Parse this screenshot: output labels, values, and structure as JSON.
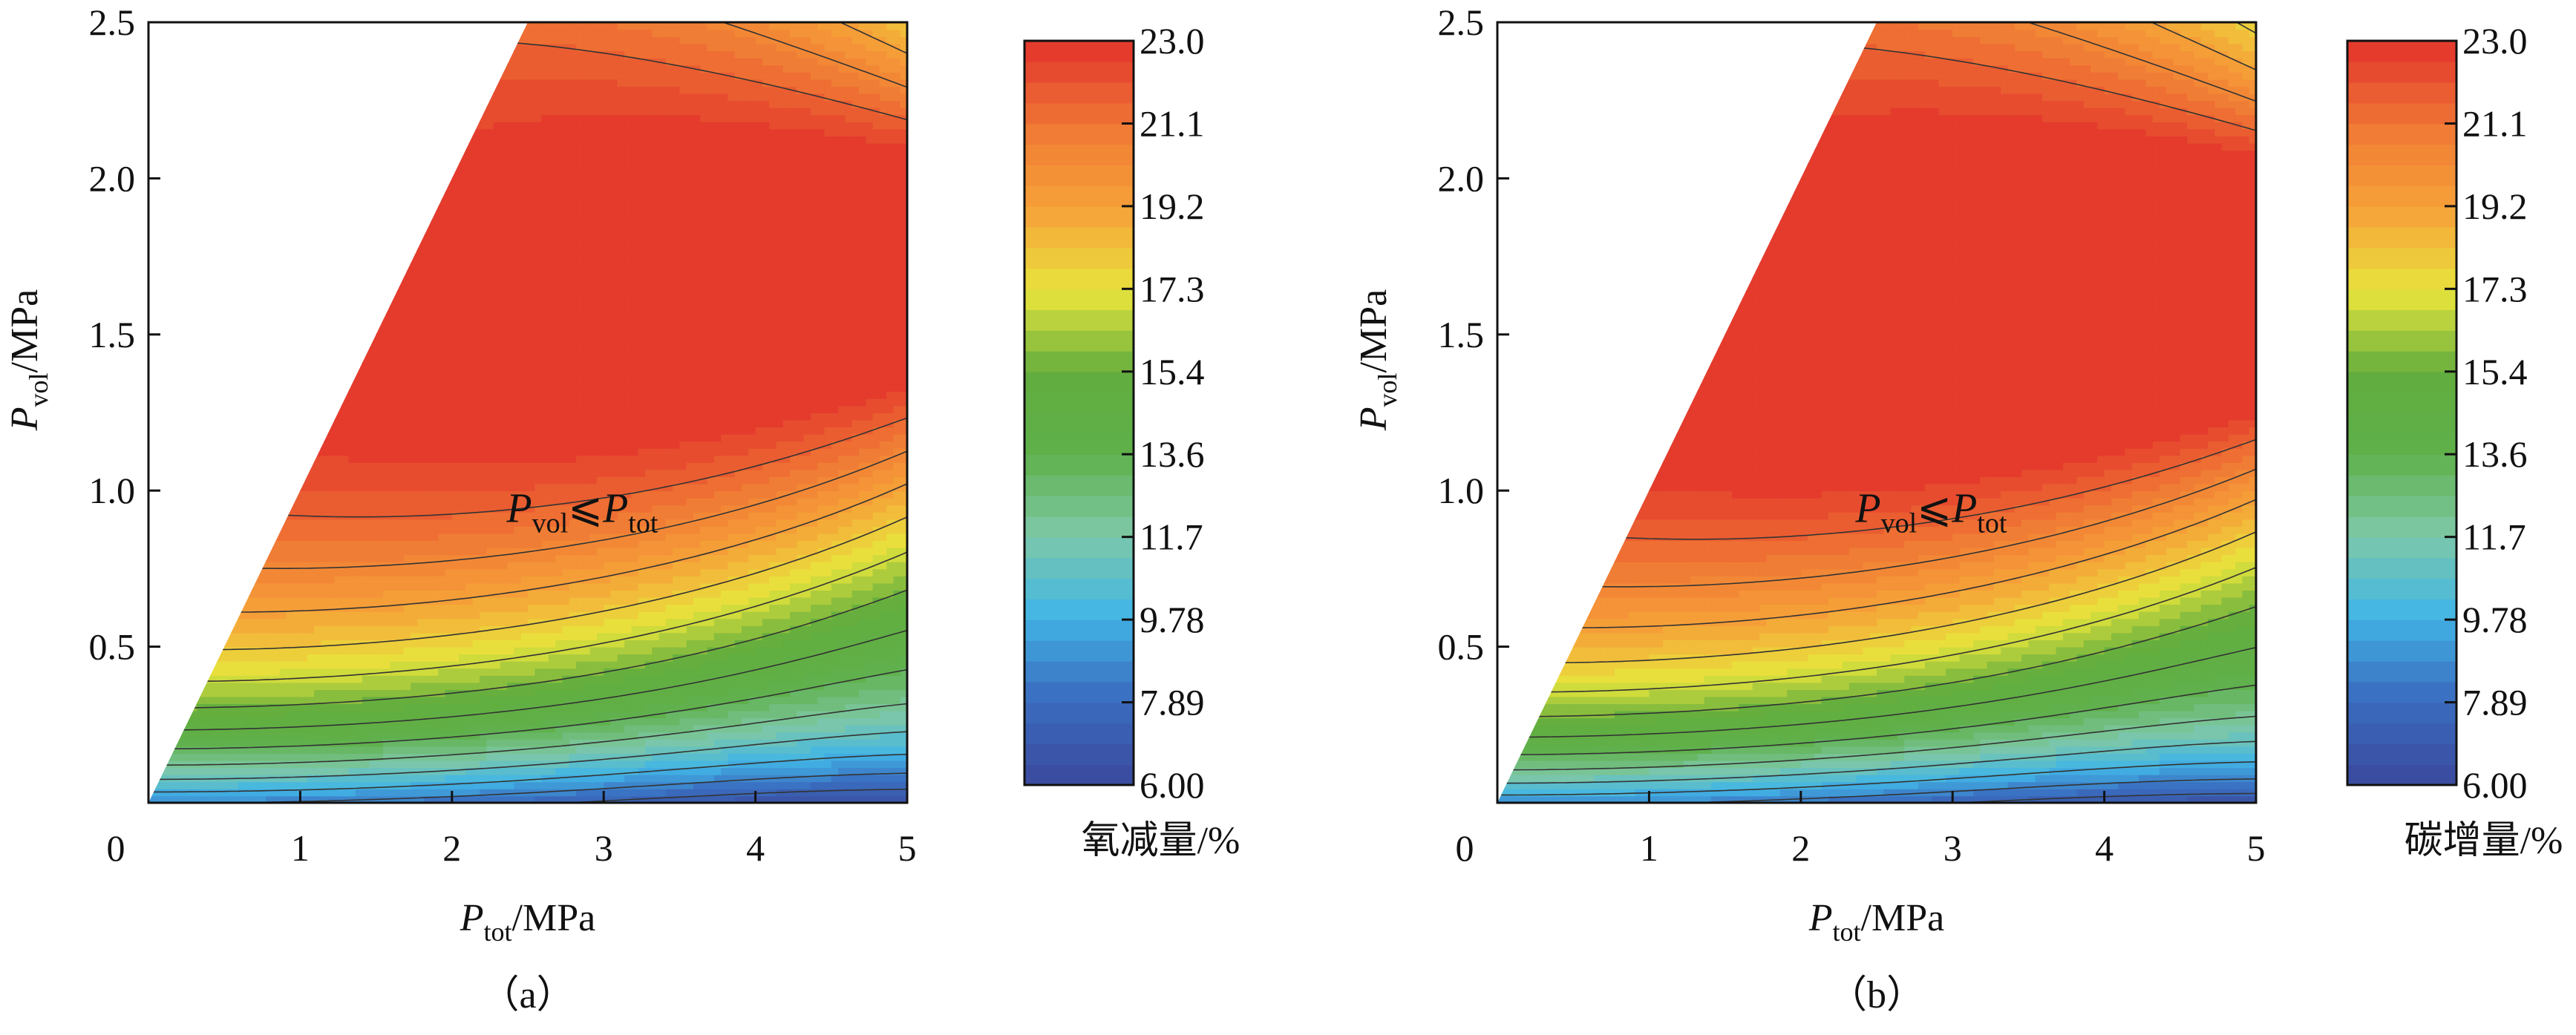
{
  "figure": {
    "colormap": [
      "#3b4da0",
      "#3a6fc1",
      "#42b6e6",
      "#7ec8a6",
      "#5fb04a",
      "#62ad3e",
      "#e8e53c",
      "#f6a439",
      "#f07b35",
      "#e43b2d"
    ],
    "contour_line_color": "#333333"
  },
  "chart_data": [
    {
      "type": "contour",
      "panel_label": "（a）",
      "xlabel": {
        "main": "P",
        "sub": "tot",
        "unit": "/MPa"
      },
      "ylabel": {
        "main": "P",
        "sub": "vol",
        "unit": "/MPa"
      },
      "xlim": [
        0,
        5
      ],
      "ylim": [
        0,
        2.5
      ],
      "xticks": [
        {
          "value": 0,
          "label": "0"
        },
        {
          "value": 1,
          "label": "1"
        },
        {
          "value": 2,
          "label": "2"
        },
        {
          "value": 3,
          "label": "3"
        },
        {
          "value": 4,
          "label": "4"
        },
        {
          "value": 5,
          "label": "5"
        }
      ],
      "yticks": [
        {
          "value": 0.5,
          "label": "0.5"
        },
        {
          "value": 1.0,
          "label": "1.0"
        },
        {
          "value": 1.5,
          "label": "1.5"
        },
        {
          "value": 2.0,
          "label": "2.0"
        },
        {
          "value": 2.5,
          "label": "2.5"
        }
      ],
      "constraint": {
        "main": "P",
        "sub1": "vol",
        "relation": "⩽",
        "main2": "P",
        "sub2": "tot"
      },
      "valid_region": "P_vol ≤ P_tot",
      "colorbar": {
        "min": 6.0,
        "max": 23.0,
        "ticks": [
          "23.0",
          "21.1",
          "19.2",
          "17.3",
          "15.4",
          "13.6",
          "11.7",
          "9.78",
          "7.89",
          "6.00"
        ],
        "title": "氧减量/%"
      },
      "peak": {
        "x": 5.0,
        "y": 1.75,
        "value": 23.0
      }
    },
    {
      "type": "contour",
      "panel_label": "（b）",
      "xlabel": {
        "main": "P",
        "sub": "tot",
        "unit": "/MPa"
      },
      "ylabel": {
        "main": "P",
        "sub": "vol",
        "unit": "/MPa"
      },
      "xlim": [
        0,
        5
      ],
      "ylim": [
        0,
        2.5
      ],
      "xticks": [
        {
          "value": 0,
          "label": "0"
        },
        {
          "value": 1,
          "label": "1"
        },
        {
          "value": 2,
          "label": "2"
        },
        {
          "value": 3,
          "label": "3"
        },
        {
          "value": 4,
          "label": "4"
        },
        {
          "value": 5,
          "label": "5"
        }
      ],
      "yticks": [
        {
          "value": 0.5,
          "label": "0.5"
        },
        {
          "value": 1.0,
          "label": "1.0"
        },
        {
          "value": 1.5,
          "label": "1.5"
        },
        {
          "value": 2.0,
          "label": "2.0"
        },
        {
          "value": 2.5,
          "label": "2.5"
        }
      ],
      "constraint": {
        "main": "P",
        "sub1": "vol",
        "relation": "⩽",
        "main2": "P",
        "sub2": "tot"
      },
      "valid_region": "P_vol ≤ P_tot",
      "colorbar": {
        "min": 6.0,
        "max": 23.0,
        "ticks": [
          "23.0",
          "21.1",
          "19.2",
          "17.3",
          "15.4",
          "13.6",
          "11.7",
          "9.78",
          "7.89",
          "6.00"
        ],
        "title": "碳增量/%"
      },
      "peak": {
        "x": 5.0,
        "y": 1.7,
        "value": 23.0
      }
    }
  ]
}
